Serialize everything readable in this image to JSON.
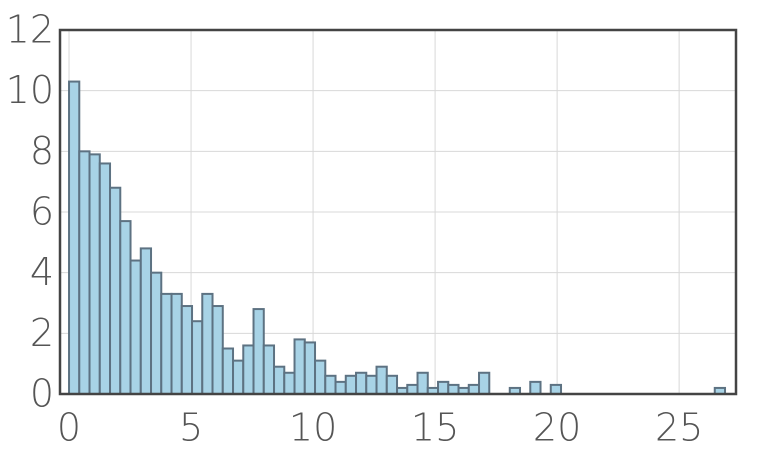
{
  "chart_data": {
    "type": "histogram",
    "bins": [
      0,
      0.42,
      0.84,
      1.26,
      1.68,
      2.1,
      2.52,
      2.94,
      3.36,
      3.78,
      4.2,
      4.62,
      5.04,
      5.46,
      5.88,
      6.3,
      6.72,
      7.14,
      7.56,
      7.98,
      8.4,
      8.82,
      9.24,
      9.66,
      10.08,
      10.5,
      10.92,
      11.34,
      11.76,
      12.18,
      12.6,
      13.02,
      13.44,
      13.86,
      14.28,
      14.7,
      15.12,
      15.54,
      15.96,
      16.38,
      16.8,
      17.22,
      17.64,
      18.06,
      18.48,
      18.9,
      19.32,
      19.74,
      20.16,
      20.58,
      21,
      21.42,
      21.84,
      22.26,
      22.68,
      23.1,
      23.52,
      23.94,
      24.36,
      24.78,
      25.2,
      25.62,
      26.04,
      26.46,
      26.88
    ],
    "values": [
      10.3,
      8.0,
      7.9,
      7.6,
      6.8,
      5.7,
      4.4,
      4.8,
      4.0,
      3.3,
      3.3,
      2.9,
      2.4,
      3.3,
      2.9,
      1.5,
      1.1,
      1.6,
      2.8,
      1.6,
      0.9,
      0.7,
      1.8,
      1.7,
      1.1,
      0.6,
      0.4,
      0.6,
      0.7,
      0.6,
      0.9,
      0.6,
      0.2,
      0.3,
      0.7,
      0.2,
      0.4,
      0.3,
      0.2,
      0.3,
      0.7,
      0,
      0,
      0.2,
      0,
      0.4,
      0,
      0.3,
      0,
      0,
      0,
      0,
      0,
      0,
      0,
      0,
      0,
      0,
      0,
      0,
      0,
      0,
      0,
      0.2
    ],
    "color": "#a8d3e6",
    "edge_color": "#5d7282",
    "xlim": [
      -0.37,
      27.33
    ],
    "ylim": [
      0,
      12
    ],
    "xticks": [
      0,
      5,
      10,
      15,
      20,
      25
    ],
    "yticks": [
      0,
      2,
      4,
      6,
      8,
      10,
      12
    ],
    "grid": true
  }
}
